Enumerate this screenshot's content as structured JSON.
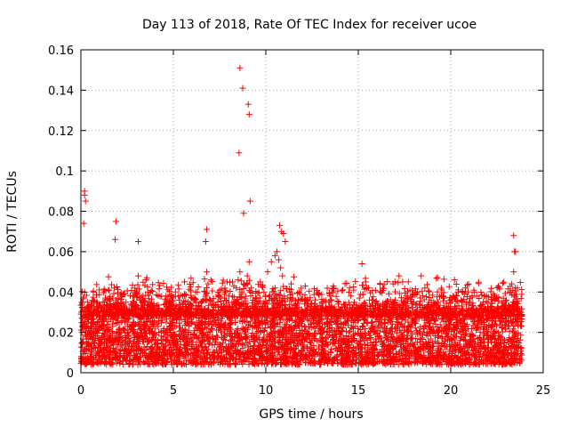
{
  "chart_data": {
    "type": "scatter",
    "title": "Day 113 of 2018, Rate Of TEC Index for receiver ucoe",
    "xlabel": "GPS time / hours",
    "ylabel": "ROTI / TECUs",
    "xlim": [
      0,
      25
    ],
    "ylim": [
      0,
      0.16
    ],
    "xticks": [
      0,
      5,
      10,
      15,
      20,
      25
    ],
    "yticks": [
      0,
      0.02,
      0.04,
      0.06,
      0.08,
      0.1,
      0.12,
      0.14,
      0.16
    ],
    "xtick_labels": [
      "0",
      "5",
      "10",
      "15",
      "20",
      "25"
    ],
    "ytick_labels": [
      "0",
      "0.02",
      "0.04",
      "0.06",
      "0.08",
      "0.1",
      "0.12",
      "0.14",
      "0.16"
    ],
    "grid": true,
    "marker": "+",
    "color": "#ff0000",
    "series": [
      {
        "name": "ROTI",
        "x": [
          0.05,
          0.1,
          0.15,
          0.2,
          0.25,
          0.3,
          0.35,
          0.4,
          0.45,
          0.5,
          0.6,
          0.7,
          0.8,
          0.9,
          1.0,
          1.2,
          1.4,
          1.6,
          1.8,
          1.9,
          2.0,
          2.1,
          2.3,
          2.5,
          2.7,
          2.9,
          3.0,
          3.1,
          3.2,
          3.4,
          3.6,
          3.8,
          4.0,
          4.2,
          4.4,
          4.6,
          4.8,
          5.0,
          5.2,
          5.4,
          5.6,
          5.8,
          6.0,
          6.2,
          6.4,
          6.6,
          6.8,
          7.0,
          7.2,
          7.4,
          7.6,
          7.8,
          8.0,
          8.2,
          8.4,
          8.5,
          8.55,
          8.6,
          8.7,
          8.8,
          8.9,
          9.0,
          9.1,
          9.2,
          9.3,
          9.5,
          9.7,
          9.9,
          10.1,
          10.3,
          10.5,
          10.6,
          10.7,
          10.8,
          10.9,
          11.0,
          11.2,
          11.4,
          11.6,
          11.8,
          12.0,
          12.2,
          12.4,
          12.6,
          12.8,
          13.0,
          13.2,
          13.4,
          13.6,
          13.8,
          14.0,
          14.2,
          14.4,
          14.6,
          14.8,
          15.0,
          15.2,
          15.4,
          15.6,
          15.8,
          16.0,
          16.2,
          16.4,
          16.6,
          16.8,
          17.0,
          17.2,
          17.4,
          17.6,
          17.8,
          18.0,
          18.2,
          18.4,
          18.6,
          18.8,
          19.0,
          19.2,
          19.4,
          19.6,
          19.8,
          20.0,
          20.2,
          20.4,
          20.6,
          20.8,
          21.0,
          21.2,
          21.4,
          21.6,
          21.8,
          22.0,
          22.2,
          22.4,
          22.6,
          22.8,
          23.0,
          23.2,
          23.3,
          23.4,
          23.5,
          23.6,
          23.7,
          0.2,
          0.25,
          0.15,
          1.9,
          1.85,
          3.1,
          8.55,
          8.6,
          8.75,
          8.8,
          9.05,
          9.1,
          9.15,
          0.2,
          6.8,
          6.75,
          10.75,
          10.85,
          10.95,
          11.05,
          23.4,
          23.45
        ],
        "y": [
          0.02,
          0.03,
          0.025,
          0.04,
          0.018,
          0.022,
          0.035,
          0.015,
          0.028,
          0.02,
          0.033,
          0.019,
          0.024,
          0.03,
          0.021,
          0.026,
          0.032,
          0.018,
          0.042,
          0.035,
          0.027,
          0.022,
          0.03,
          0.025,
          0.034,
          0.029,
          0.04,
          0.048,
          0.036,
          0.024,
          0.028,
          0.033,
          0.022,
          0.03,
          0.026,
          0.038,
          0.021,
          0.02,
          0.027,
          0.032,
          0.045,
          0.035,
          0.028,
          0.04,
          0.025,
          0.03,
          0.05,
          0.036,
          0.024,
          0.029,
          0.033,
          0.04,
          0.038,
          0.045,
          0.042,
          0.046,
          0.035,
          0.05,
          0.04,
          0.044,
          0.03,
          0.048,
          0.055,
          0.042,
          0.036,
          0.03,
          0.045,
          0.04,
          0.05,
          0.055,
          0.058,
          0.06,
          0.056,
          0.052,
          0.048,
          0.038,
          0.032,
          0.028,
          0.034,
          0.026,
          0.03,
          0.036,
          0.029,
          0.025,
          0.033,
          0.027,
          0.031,
          0.035,
          0.028,
          0.024,
          0.03,
          0.034,
          0.026,
          0.038,
          0.029,
          0.032,
          0.054,
          0.045,
          0.036,
          0.03,
          0.028,
          0.04,
          0.033,
          0.025,
          0.031,
          0.036,
          0.048,
          0.045,
          0.038,
          0.03,
          0.035,
          0.04,
          0.048,
          0.042,
          0.032,
          0.027,
          0.034,
          0.03,
          0.038,
          0.029,
          0.024,
          0.046,
          0.04,
          0.033,
          0.028,
          0.035,
          0.03,
          0.038,
          0.033,
          0.026,
          0.031,
          0.03,
          0.036,
          0.028,
          0.025,
          0.032,
          0.04,
          0.044,
          0.05,
          0.06,
          0.042,
          0.03,
          0.09,
          0.085,
          0.074,
          0.075,
          0.066,
          0.065,
          0.109,
          0.151,
          0.141,
          0.079,
          0.133,
          0.128,
          0.085,
          0.088,
          0.071,
          0.065,
          0.073,
          0.07,
          0.069,
          0.065,
          0.068,
          0.06
        ]
      }
    ]
  }
}
